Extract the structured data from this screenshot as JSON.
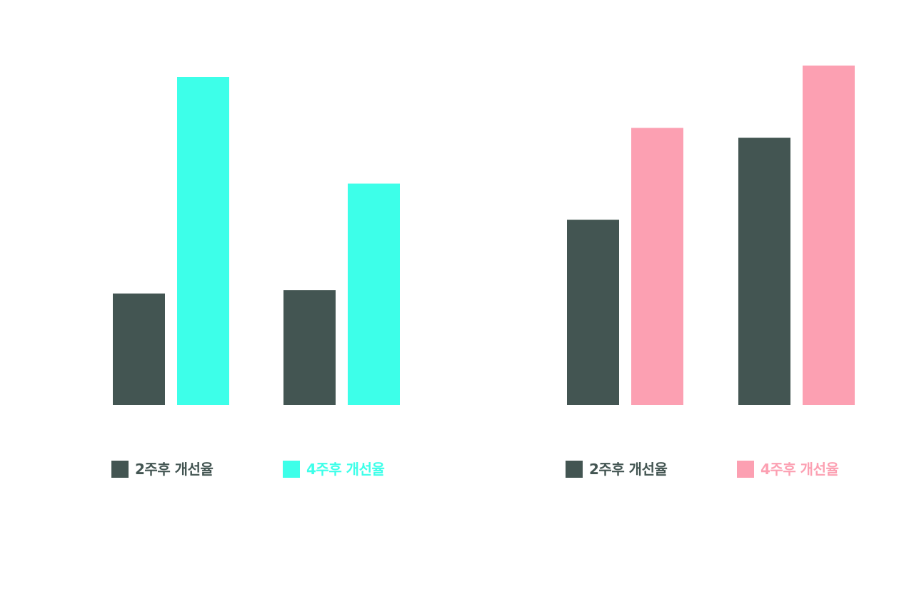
{
  "chart_data": [
    {
      "type": "bar",
      "categories": [
        "",
        ""
      ],
      "series": [
        {
          "name": "2주후 개선율",
          "color": "#435552",
          "values": [
            34,
            35
          ]
        },
        {
          "name": "4주후 개선율",
          "color": "#3dffe9",
          "values": [
            100,
            67.5
          ]
        }
      ],
      "ylim": [
        0,
        100
      ],
      "grid": false,
      "legend": "bottom"
    },
    {
      "type": "bar",
      "categories": [
        "",
        ""
      ],
      "series": [
        {
          "name": "2주후 개선율",
          "color": "#435552",
          "values": [
            56.5,
            81.5
          ]
        },
        {
          "name": "4주후 개선율",
          "color": "#fca0b2",
          "values": [
            84.5,
            103.5
          ]
        }
      ],
      "ylim": [
        0,
        100
      ],
      "grid": false,
      "legend": "bottom"
    }
  ]
}
